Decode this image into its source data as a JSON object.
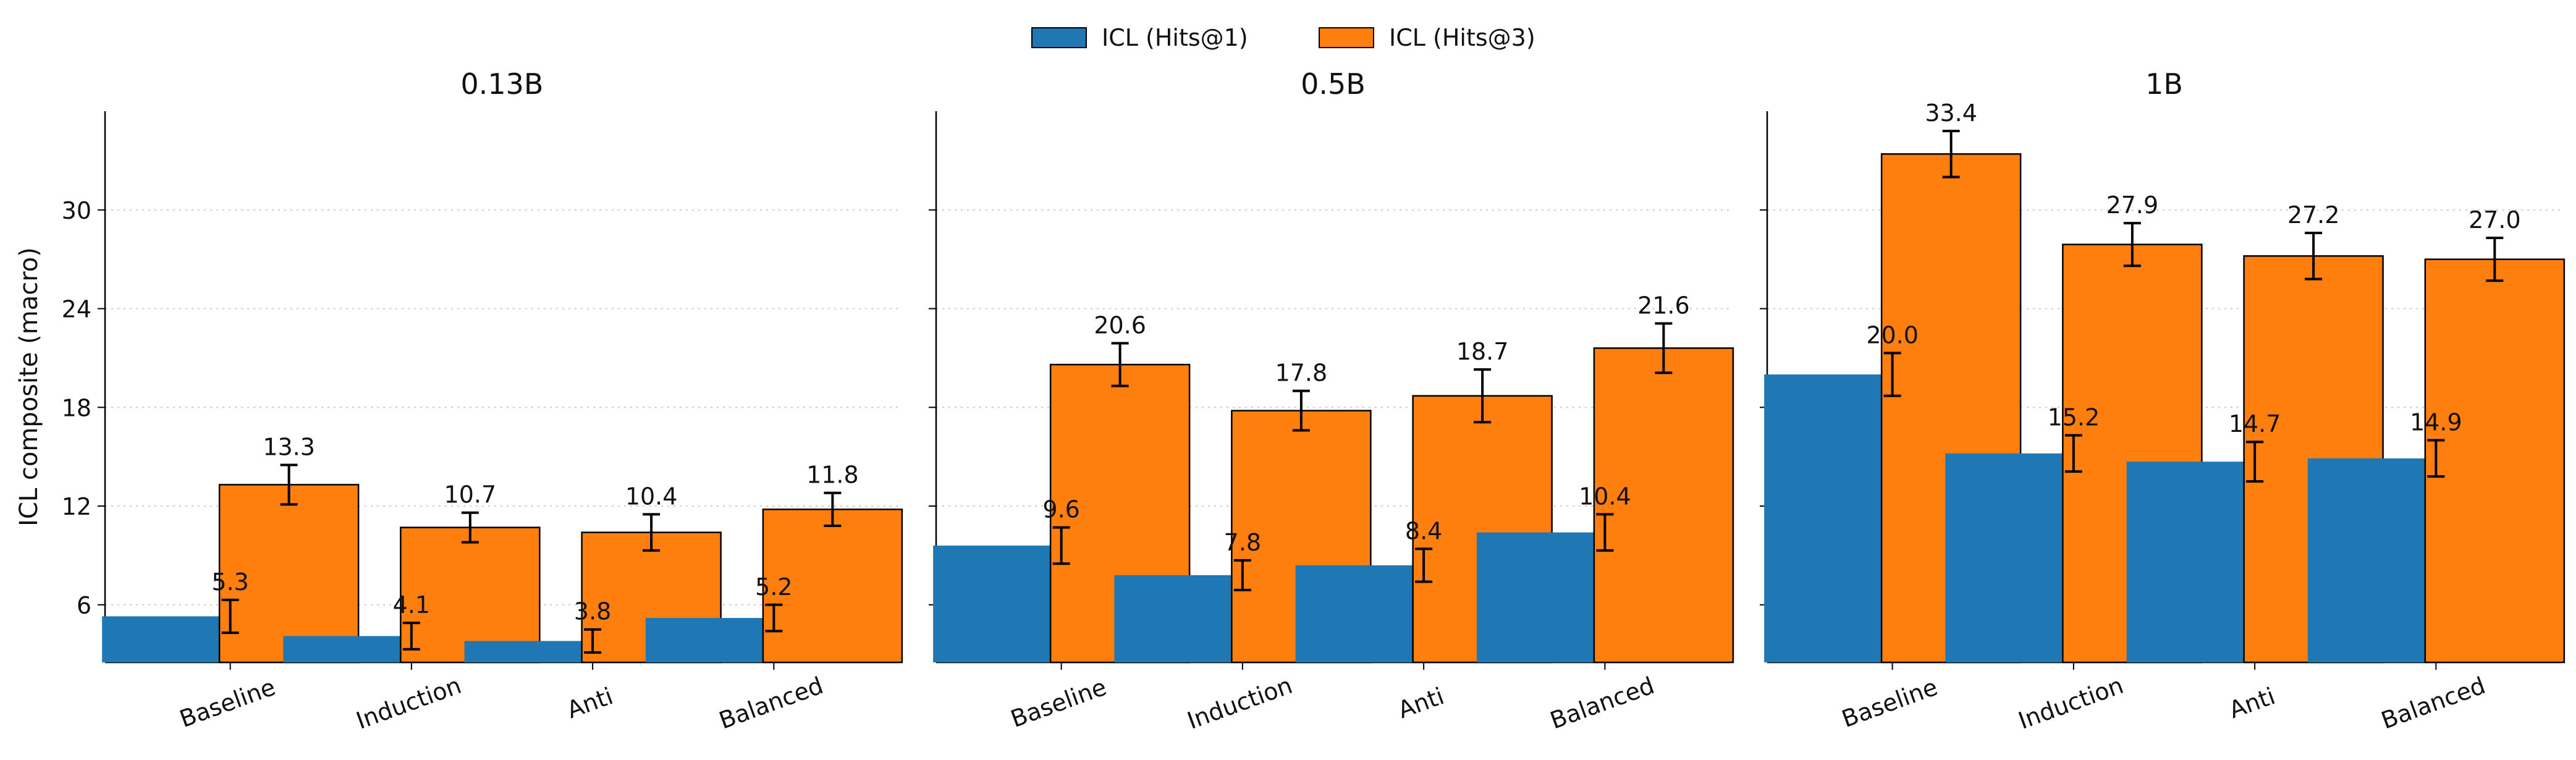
{
  "legend": {
    "position": "top-center",
    "items": [
      {
        "label": "ICL (Hits@1)",
        "color": "#1f77b4"
      },
      {
        "label": "ICL (Hits@3)",
        "color": "#ff7f0e"
      }
    ]
  },
  "chart_data": [
    {
      "type": "bar",
      "title": "0.13B",
      "ylabel": "ICL composite (macro)",
      "xlabel": "",
      "ylim": [
        2.5,
        36
      ],
      "yticks": [
        6,
        12,
        18,
        24,
        30
      ],
      "ytick_labels": [
        "6",
        "12",
        "18",
        "24",
        "30"
      ],
      "grid": "y-dotted",
      "categories": [
        "Baseline",
        "Induction",
        "Anti",
        "Balanced"
      ],
      "series": [
        {
          "name": "ICL (Hits@1)",
          "color": "#1f77b4",
          "values": [
            5.3,
            4.1,
            3.8,
            5.2
          ],
          "labels": [
            "5.3",
            "4.1",
            "3.8",
            "5.2"
          ],
          "errors": [
            1.0,
            0.8,
            0.7,
            0.8
          ]
        },
        {
          "name": "ICL (Hits@3)",
          "color": "#ff7f0e",
          "values": [
            13.3,
            10.7,
            10.4,
            11.8
          ],
          "labels": [
            "13.3",
            "10.7",
            "10.4",
            "11.8"
          ],
          "errors": [
            1.2,
            0.9,
            1.1,
            1.0
          ]
        }
      ]
    },
    {
      "type": "bar",
      "title": "0.5B",
      "ylabel": "",
      "xlabel": "",
      "ylim": [
        2.5,
        36
      ],
      "yticks": [
        6,
        12,
        18,
        24,
        30
      ],
      "ytick_labels": [
        "",
        "",
        "",
        "",
        ""
      ],
      "grid": "y-dotted",
      "categories": [
        "Baseline",
        "Induction",
        "Anti",
        "Balanced"
      ],
      "series": [
        {
          "name": "ICL (Hits@1)",
          "color": "#1f77b4",
          "values": [
            9.6,
            7.8,
            8.4,
            10.4
          ],
          "labels": [
            "9.6",
            "7.8",
            "8.4",
            "10.4"
          ],
          "errors": [
            1.1,
            0.9,
            1.0,
            1.1
          ]
        },
        {
          "name": "ICL (Hits@3)",
          "color": "#ff7f0e",
          "values": [
            20.6,
            17.8,
            18.7,
            21.6
          ],
          "labels": [
            "20.6",
            "17.8",
            "18.7",
            "21.6"
          ],
          "errors": [
            1.3,
            1.2,
            1.6,
            1.5
          ]
        }
      ]
    },
    {
      "type": "bar",
      "title": "1B",
      "ylabel": "",
      "xlabel": "",
      "ylim": [
        2.5,
        36
      ],
      "yticks": [
        6,
        12,
        18,
        24,
        30
      ],
      "ytick_labels": [
        "",
        "",
        "",
        "",
        ""
      ],
      "grid": "y-dotted",
      "categories": [
        "Baseline",
        "Induction",
        "Anti",
        "Balanced"
      ],
      "series": [
        {
          "name": "ICL (Hits@1)",
          "color": "#1f77b4",
          "values": [
            20.0,
            15.2,
            14.7,
            14.9
          ],
          "labels": [
            "20.0",
            "15.2",
            "14.7",
            "14.9"
          ],
          "errors": [
            1.3,
            1.1,
            1.2,
            1.1
          ]
        },
        {
          "name": "ICL (Hits@3)",
          "color": "#ff7f0e",
          "values": [
            33.4,
            27.9,
            27.2,
            27.0
          ],
          "labels": [
            "33.4",
            "27.9",
            "27.2",
            "27.0"
          ],
          "errors": [
            1.4,
            1.3,
            1.4,
            1.3
          ]
        }
      ]
    }
  ]
}
